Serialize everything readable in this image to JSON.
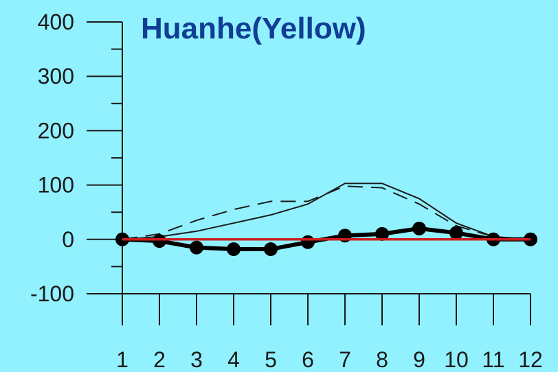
{
  "chart_data": {
    "type": "line",
    "title": "Huanhe(Yellow)",
    "xlabel": "",
    "ylabel": "",
    "x": [
      1,
      2,
      3,
      4,
      5,
      6,
      7,
      8,
      9,
      10,
      11,
      12
    ],
    "xtick_labels": [
      "1",
      "2",
      "3",
      "4",
      "5",
      "6",
      "7",
      "8",
      "9",
      "10",
      "11",
      "12"
    ],
    "ylim": [
      -100,
      400
    ],
    "yticks": [
      -100,
      0,
      100,
      200,
      300,
      400
    ],
    "ytick_labels": [
      "-100",
      "0",
      "100",
      "200",
      "300",
      "400"
    ],
    "grid": false,
    "series": [
      {
        "style": "solid-thin",
        "color": "#1a1a1a",
        "values": [
          0,
          5,
          15,
          30,
          45,
          65,
          103,
          103,
          75,
          30,
          5,
          0
        ]
      },
      {
        "style": "dashed",
        "color": "#1a1a1a",
        "values": [
          0,
          10,
          35,
          55,
          70,
          70,
          98,
          95,
          65,
          25,
          5,
          0
        ]
      },
      {
        "style": "thick-with-circle-markers",
        "color": "#000000",
        "values": [
          0,
          -3,
          -15,
          -18,
          -18,
          -5,
          7,
          10,
          20,
          12,
          0,
          0
        ]
      },
      {
        "style": "solid-red",
        "color": "#cc1f1f",
        "values": [
          0,
          0,
          0,
          0,
          0,
          0,
          0,
          0,
          0,
          0,
          0,
          0
        ]
      }
    ]
  }
}
